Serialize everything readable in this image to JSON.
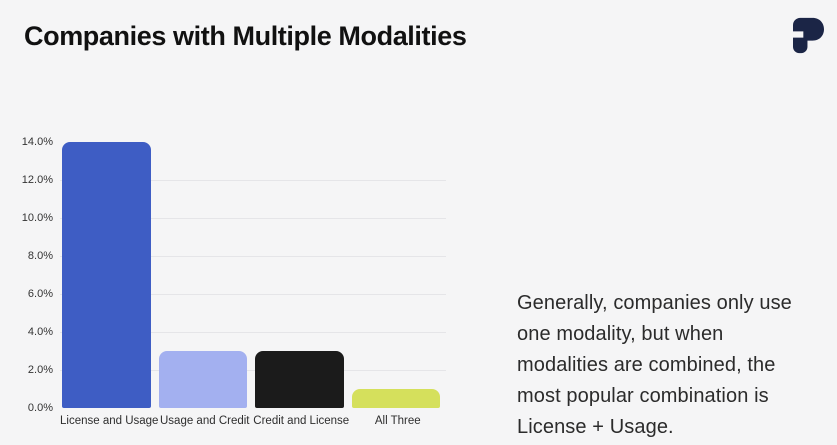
{
  "header": {
    "title": "Companies with Multiple Modalities",
    "logo_color": "#1b2546"
  },
  "chart_data": {
    "type": "bar",
    "title": "Companies with Multiple Modalities",
    "categories": [
      "License and Usage",
      "Usage and Credit",
      "Credit and License",
      "All Three"
    ],
    "values": [
      14.0,
      3.0,
      3.0,
      1.0
    ],
    "value_unit": "%",
    "bar_colors": [
      "#3e5dc4",
      "#a3b0f0",
      "#1b1b1b",
      "#d5e05c"
    ],
    "y_ticks": [
      "0.0%",
      "2.0%",
      "4.0%",
      "6.0%",
      "8.0%",
      "10.0%",
      "12.0%",
      "14.0%"
    ],
    "ylim": [
      0,
      14
    ],
    "gridline_values": [
      2,
      4,
      6,
      8,
      10,
      12
    ],
    "xlabel": "",
    "ylabel": "",
    "legend": "none",
    "grid": "horizontal"
  },
  "annotation": {
    "text": "Generally, companies only use one modality, but when modalities are combined, the most popular combination is License + Usage."
  },
  "colors": {
    "background": "#f5f5f6",
    "grid": "#e5e5e8",
    "axis_text": "#333333",
    "title_text": "#111111",
    "annotation_text": "#2b2b2b"
  }
}
